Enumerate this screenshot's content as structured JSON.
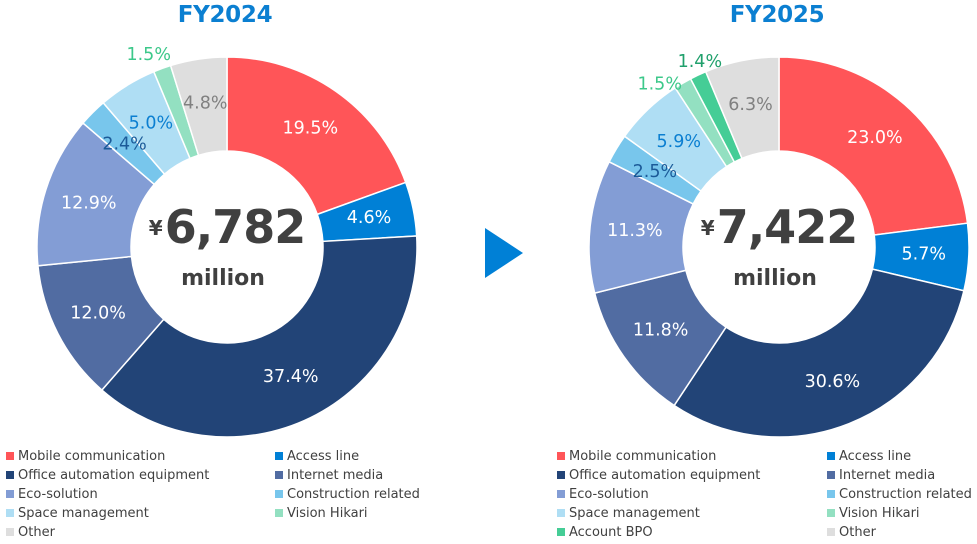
{
  "chart_data": [
    {
      "type": "pie",
      "variant": "donut",
      "title": "FY2024",
      "center_currency": "¥",
      "center_value": "6,782",
      "center_unit": "million",
      "start": "12 o'clock, clockwise",
      "slices": [
        {
          "name": "Mobile communication",
          "value": 19.5,
          "label": "19.5%",
          "color": "#FF5558",
          "label_color": "#FFFFFF",
          "label_position": "inside"
        },
        {
          "name": "Access line",
          "value": 4.6,
          "label": "4.6%",
          "color": "#0080D6",
          "label_color": "#FFFFFF",
          "label_position": "inside"
        },
        {
          "name": "Office automation equipment",
          "value": 37.4,
          "label": "37.4%",
          "color": "#224477",
          "label_color": "#FFFFFF",
          "label_position": "inside"
        },
        {
          "name": "Internet media",
          "value": 12.0,
          "label": "12.0%",
          "color": "#516CA2",
          "label_color": "#FFFFFF",
          "label_position": "inside"
        },
        {
          "name": "Eco-solution",
          "value": 12.9,
          "label": "12.9%",
          "color": "#839DD5",
          "label_color": "#FFFFFF",
          "label_position": "inside"
        },
        {
          "name": "Construction related",
          "value": 2.4,
          "label": "2.4%",
          "color": "#78C6EC",
          "label_color": "#1B5A98",
          "label_position": "inside"
        },
        {
          "name": "Space management",
          "value": 5.0,
          "label": "5.0%",
          "color": "#AFDEF4",
          "label_color": "#0B7FD1",
          "label_position": "inside"
        },
        {
          "name": "Vision Hikari",
          "value": 1.5,
          "label": "1.5%",
          "color": "#93E0C1",
          "label_color": "#3CC88A",
          "label_position": "outside"
        },
        {
          "name": "Other",
          "value": 4.8,
          "label": "4.8%",
          "color": "#DEDEDE",
          "label_color": "#808080",
          "label_position": "inside"
        }
      ],
      "legend": {
        "placement": "bottom",
        "items": [
          "Mobile communication",
          "Access line",
          "Office automation equipment",
          "Internet media",
          "Eco-solution",
          "Construction related",
          "Space management",
          "Vision Hikari",
          "Other"
        ]
      }
    },
    {
      "type": "pie",
      "variant": "donut",
      "title": "FY2025",
      "center_currency": "¥",
      "center_value": "7,422",
      "center_unit": "million",
      "start": "12 o'clock, clockwise",
      "slices": [
        {
          "name": "Mobile communication",
          "value": 23.0,
          "label": "23.0%",
          "color": "#FF5558",
          "label_color": "#FFFFFF",
          "label_position": "inside"
        },
        {
          "name": "Access line",
          "value": 5.7,
          "label": "5.7%",
          "color": "#0080D6",
          "label_color": "#FFFFFF",
          "label_position": "inside"
        },
        {
          "name": "Office automation equipment",
          "value": 30.6,
          "label": "30.6%",
          "color": "#224477",
          "label_color": "#FFFFFF",
          "label_position": "inside"
        },
        {
          "name": "Internet media",
          "value": 11.8,
          "label": "11.8%",
          "color": "#516CA2",
          "label_color": "#FFFFFF",
          "label_position": "inside"
        },
        {
          "name": "Eco-solution",
          "value": 11.3,
          "label": "11.3%",
          "color": "#839DD5",
          "label_color": "#FFFFFF",
          "label_position": "inside"
        },
        {
          "name": "Construction related",
          "value": 2.5,
          "label": "2.5%",
          "color": "#78C6EC",
          "label_color": "#1B5A98",
          "label_position": "inside"
        },
        {
          "name": "Space management",
          "value": 5.9,
          "label": "5.9%",
          "color": "#AFDEF4",
          "label_color": "#0B7FD1",
          "label_position": "inside"
        },
        {
          "name": "Vision Hikari",
          "value": 1.5,
          "label": "1.5%",
          "color": "#93E0C1",
          "label_color": "#3CC88A",
          "label_position": "outside"
        },
        {
          "name": "Account BPO",
          "value": 1.4,
          "label": "1.4%",
          "color": "#45CD96",
          "label_color": "#20A06C",
          "label_position": "outside"
        },
        {
          "name": "Other",
          "value": 6.3,
          "label": "6.3%",
          "color": "#DEDEDE",
          "label_color": "#808080",
          "label_position": "inside"
        }
      ],
      "legend": {
        "placement": "bottom",
        "items": [
          "Mobile communication",
          "Access line",
          "Office automation equipment",
          "Internet media",
          "Eco-solution",
          "Construction related",
          "Space management",
          "Vision Hikari",
          "Account BPO",
          "Other"
        ]
      }
    }
  ],
  "titles": [
    "FY2024",
    "FY2025"
  ],
  "title_color": "#0B7FD1",
  "center_text_color": "#404040",
  "arrow": {
    "icon": "play-triangle-right-icon",
    "color": "#0080D6"
  }
}
